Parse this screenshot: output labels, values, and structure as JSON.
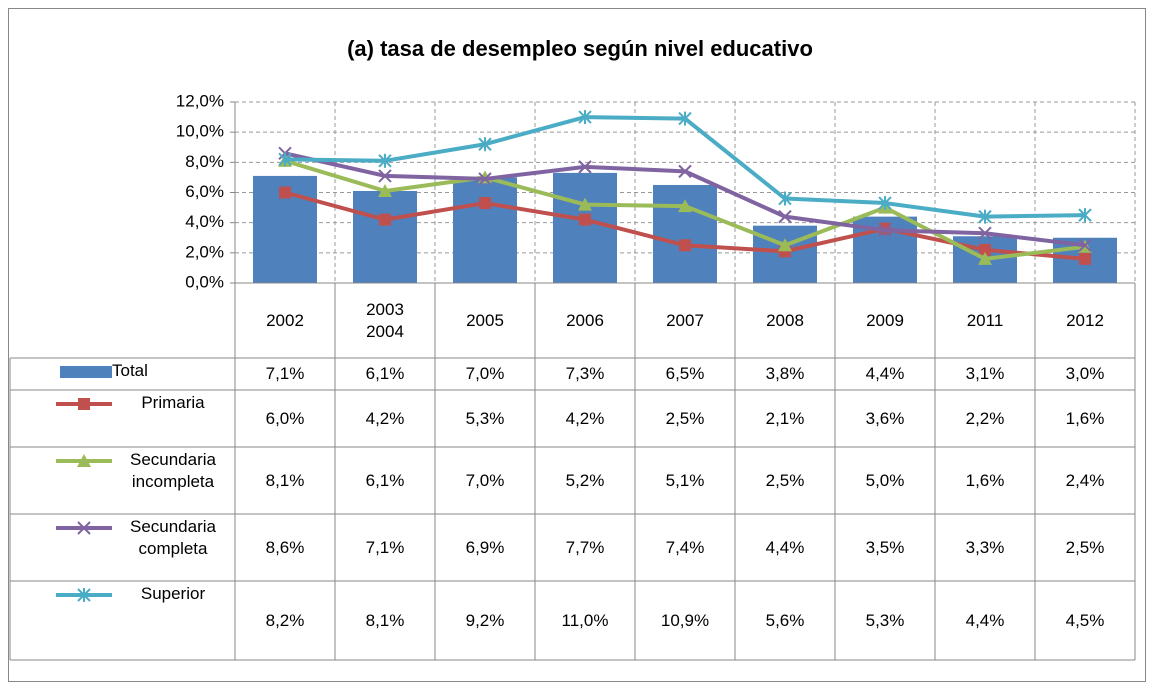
{
  "chart_data": {
    "type": "bar",
    "title": "(a) tasa de desempleo según nivel educativo",
    "categories": [
      "2002",
      "2003\n2004",
      "2005",
      "2006",
      "2007",
      "2008",
      "2009",
      "2011",
      "2012"
    ],
    "ylim": [
      0,
      12
    ],
    "yticks": [
      {
        "value": 0,
        "label": "0,0%"
      },
      {
        "value": 2,
        "label": "2,0%"
      },
      {
        "value": 4,
        "label": "4,0%"
      },
      {
        "value": 6,
        "label": "6,0%"
      },
      {
        "value": 8,
        "label": "8,0%"
      },
      {
        "value": 10,
        "label": "10,0%"
      },
      {
        "value": 12,
        "label": "12,0%"
      }
    ],
    "grid": true,
    "series": [
      {
        "name": "Total",
        "type": "bar",
        "color": "#4f81bd",
        "values": [
          7.1,
          6.1,
          7.0,
          7.3,
          6.5,
          3.8,
          4.4,
          3.1,
          3.0
        ],
        "value_labels": [
          "7,1%",
          "6,1%",
          "7,0%",
          "7,3%",
          "6,5%",
          "3,8%",
          "4,4%",
          "3,1%",
          "3,0%"
        ]
      },
      {
        "name": "Primaria",
        "type": "line",
        "marker": "square",
        "color": "#c0504d",
        "values": [
          6.0,
          4.2,
          5.3,
          4.2,
          2.5,
          2.1,
          3.6,
          2.2,
          1.6
        ],
        "value_labels": [
          "6,0%",
          "4,2%",
          "5,3%",
          "4,2%",
          "2,5%",
          "2,1%",
          "3,6%",
          "2,2%",
          "1,6%"
        ]
      },
      {
        "name": "Secundaria incompleta",
        "type": "line",
        "marker": "triangle",
        "color": "#9bbb59",
        "values": [
          8.1,
          6.1,
          7.0,
          5.2,
          5.1,
          2.5,
          5.0,
          1.6,
          2.4
        ],
        "value_labels": [
          "8,1%",
          "6,1%",
          "7,0%",
          "5,2%",
          "5,1%",
          "2,5%",
          "5,0%",
          "1,6%",
          "2,4%"
        ]
      },
      {
        "name": "Secundaria completa",
        "type": "line",
        "marker": "x",
        "color": "#8064a2",
        "values": [
          8.6,
          7.1,
          6.9,
          7.7,
          7.4,
          4.4,
          3.5,
          3.3,
          2.5
        ],
        "value_labels": [
          "8,6%",
          "7,1%",
          "6,9%",
          "7,7%",
          "7,4%",
          "4,4%",
          "3,5%",
          "3,3%",
          "2,5%"
        ]
      },
      {
        "name": "Superior",
        "type": "line",
        "marker": "star",
        "color": "#4bacc6",
        "values": [
          8.2,
          8.1,
          9.2,
          11.0,
          10.9,
          5.6,
          5.3,
          4.4,
          4.5
        ],
        "value_labels": [
          "8,2%",
          "8,1%",
          "9,2%",
          "11,0%",
          "10,9%",
          "5,6%",
          "5,3%",
          "4,4%",
          "4,5%"
        ]
      }
    ]
  }
}
